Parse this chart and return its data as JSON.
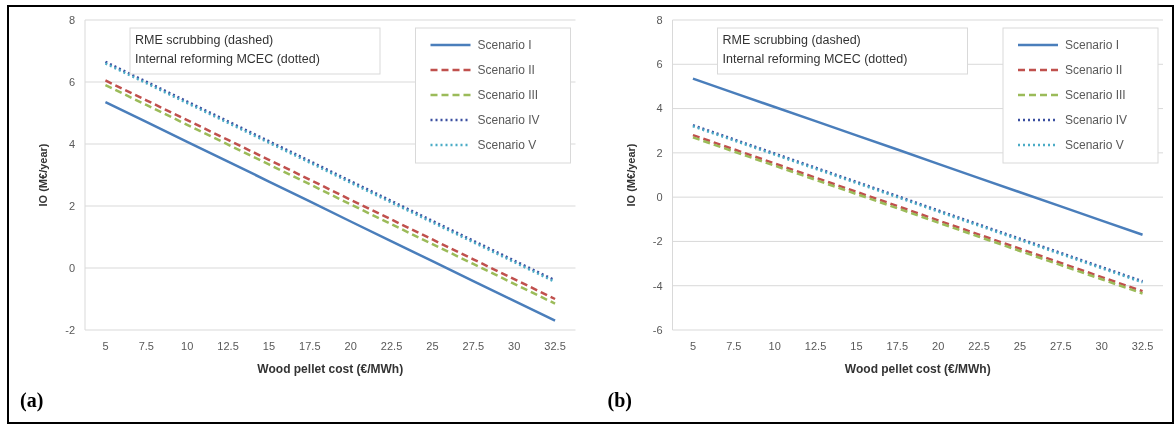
{
  "chart_data": [
    {
      "type": "line",
      "xlabel": "Wood pellet cost (€/MWh)",
      "ylabel": "IO (M€/year)",
      "categories": [
        "5",
        "7.5",
        "10",
        "12.5",
        "15",
        "17.5",
        "20",
        "22.5",
        "25",
        "27.5",
        "30",
        "32.5"
      ],
      "ylim": [
        -2,
        8
      ],
      "yticks": [
        -2,
        0,
        2,
        4,
        6,
        8
      ],
      "grid": "y",
      "legend": "top right",
      "annotations": [
        "RME scrubbing (dashed)",
        "Internal reforming MCEC (dotted)",
        "(a)"
      ],
      "series": [
        {
          "name": "Scenario I",
          "color": "#4a7ebb",
          "line_style": "solid",
          "values": [
            5.35,
            4.71,
            4.07,
            3.43,
            2.79,
            2.15,
            1.5,
            0.86,
            0.22,
            -0.42,
            -1.06,
            -1.7
          ]
        },
        {
          "name": "Scenario II",
          "color": "#c0504d",
          "line_style": "dashed",
          "values": [
            6.05,
            5.41,
            4.77,
            4.13,
            3.49,
            2.85,
            2.2,
            1.56,
            0.92,
            0.28,
            -0.36,
            -1.0
          ]
        },
        {
          "name": "Scenario III",
          "color": "#9bbb59",
          "line_style": "dashed",
          "values": [
            5.9,
            5.26,
            4.62,
            3.98,
            3.34,
            2.7,
            2.05,
            1.41,
            0.77,
            0.13,
            -0.51,
            -1.15
          ]
        },
        {
          "name": "Scenario IV",
          "color": "#3b4fa0",
          "line_style": "dotted",
          "values": [
            6.65,
            6.01,
            5.37,
            4.73,
            4.09,
            3.45,
            2.8,
            2.16,
            1.52,
            0.88,
            0.24,
            -0.4
          ]
        },
        {
          "name": "Scenario V",
          "color": "#4bacc6",
          "line_style": "dotted",
          "values": [
            6.6,
            5.96,
            5.32,
            4.68,
            4.04,
            3.4,
            2.75,
            2.11,
            1.47,
            0.83,
            0.19,
            -0.45
          ]
        }
      ]
    },
    {
      "type": "line",
      "xlabel": "Wood pellet cost (€/MWh)",
      "ylabel": "IO (M€/year)",
      "categories": [
        "5",
        "7.5",
        "10",
        "12.5",
        "15",
        "17.5",
        "20",
        "22.5",
        "25",
        "27.5",
        "30",
        "32.5"
      ],
      "ylim": [
        -6,
        8
      ],
      "yticks": [
        -6,
        -4,
        -2,
        0,
        2,
        4,
        6,
        8
      ],
      "grid": "y",
      "legend": "top right",
      "annotations": [
        "RME scrubbing (dashed)",
        "Internal reforming MCEC (dotted)",
        "(b)"
      ],
      "series": [
        {
          "name": "Scenario I",
          "color": "#4a7ebb",
          "line_style": "solid",
          "values": [
            5.35,
            4.71,
            4.07,
            3.43,
            2.79,
            2.15,
            1.5,
            0.86,
            0.22,
            -0.42,
            -1.06,
            -1.7
          ]
        },
        {
          "name": "Scenario II",
          "color": "#c0504d",
          "line_style": "dashed",
          "values": [
            2.8,
            2.16,
            1.52,
            0.88,
            0.24,
            -0.4,
            -1.05,
            -1.69,
            -2.33,
            -2.97,
            -3.61,
            -4.25
          ]
        },
        {
          "name": "Scenario III",
          "color": "#9bbb59",
          "line_style": "dashed",
          "values": [
            2.7,
            2.06,
            1.42,
            0.78,
            0.14,
            -0.5,
            -1.15,
            -1.79,
            -2.43,
            -3.07,
            -3.71,
            -4.35
          ]
        },
        {
          "name": "Scenario IV",
          "color": "#3b4fa0",
          "line_style": "dotted",
          "values": [
            3.25,
            2.61,
            1.97,
            1.33,
            0.69,
            0.05,
            -0.6,
            -1.24,
            -1.88,
            -2.52,
            -3.16,
            -3.8
          ]
        },
        {
          "name": "Scenario V",
          "color": "#4bacc6",
          "line_style": "dotted",
          "values": [
            3.2,
            2.56,
            1.92,
            1.28,
            0.64,
            0,
            -0.65,
            -1.29,
            -1.93,
            -2.57,
            -3.21,
            -3.85
          ]
        }
      ]
    }
  ]
}
